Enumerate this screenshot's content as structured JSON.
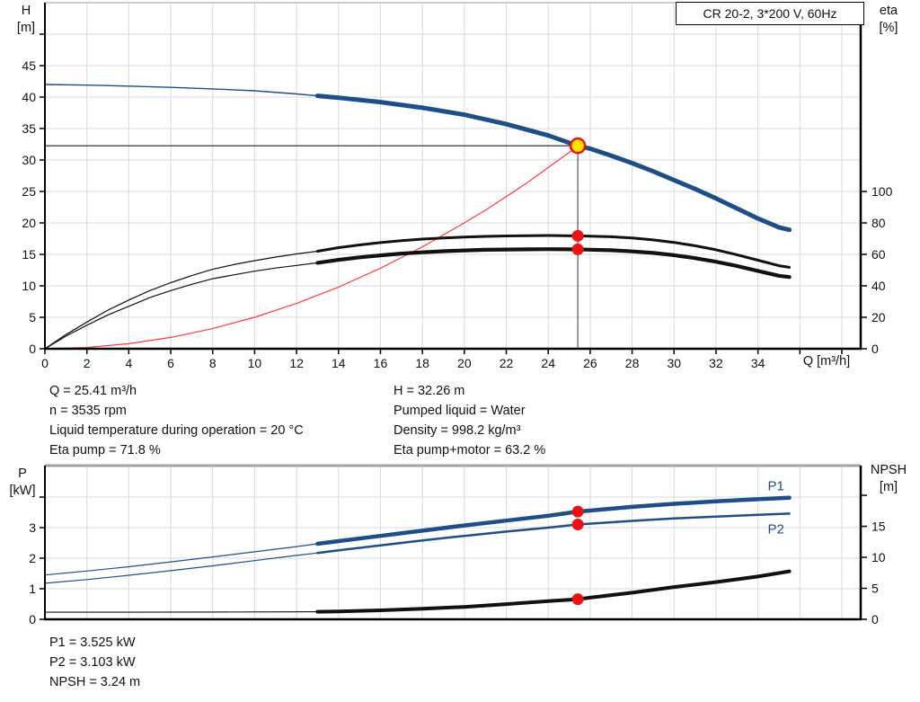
{
  "title_box": "CR 20-2, 3*200 V, 60Hz",
  "colors": {
    "blue": "#1e4e87",
    "red_line": "#ff3b3b",
    "red_dot": "#ee1111",
    "yellow": "#ffe400",
    "black": "#111111",
    "grid": "#d8dbdd",
    "frame_top1": "#c8cccd",
    "frame_top2": "#a2a2a2",
    "axis": "#000000"
  },
  "annotations": {
    "top_left": [
      "Q = 25.41 m³/h",
      "n = 3535 rpm",
      "Liquid temperature during operation = 20 °C",
      "Eta pump = 71.8 %"
    ],
    "top_right": [
      "H = 32.26 m",
      "Pumped liquid = Water",
      "Density = 998.2 kg/m³",
      "Eta pump+motor = 63.2 %"
    ],
    "bottom": [
      "P1 = 3.525 kW",
      "P2 = 3.103 kW",
      "NPSH = 3.24 m"
    ]
  },
  "chart_data": [
    {
      "type": "line",
      "name": "qh-eta-chart",
      "x": {
        "title": "Q [m³/h]",
        "max": 38.9,
        "ticks": [
          0,
          2,
          4,
          6,
          8,
          10,
          12,
          14,
          16,
          18,
          20,
          22,
          24,
          26,
          28,
          30,
          32,
          34,
          36,
          38
        ],
        "tick_labels": [
          "0",
          "2",
          "4",
          "6",
          "8",
          "10",
          "12",
          "14",
          "16",
          "18",
          "20",
          "22",
          "24",
          "26",
          "28",
          "30",
          "32",
          "34",
          "",
          ""
        ],
        "tick_marks": true
      },
      "y_left": {
        "name": "H",
        "unit": "[m]",
        "max": 55,
        "ticks": [
          0,
          5,
          10,
          15,
          20,
          25,
          30,
          35,
          40,
          45,
          50
        ],
        "tick_labels": [
          "0",
          "5",
          "10",
          "15",
          "20",
          "25",
          "30",
          "35",
          "40",
          "45",
          ""
        ]
      },
      "y_right": {
        "name": "eta",
        "unit": "[%]",
        "max": 220,
        "ticks": [
          0,
          20,
          40,
          60,
          80,
          100
        ],
        "tick_labels": [
          "0",
          "20",
          "40",
          "60",
          "80",
          "100"
        ]
      },
      "duty_point": {
        "q": 25.41,
        "h": 32.26
      },
      "series": [
        {
          "id": "pump-curve",
          "axis": "left",
          "color": "blue",
          "thin": 1.4,
          "thick": 5,
          "split_q": 13,
          "points": [
            [
              0,
              42
            ],
            [
              2,
              41.9
            ],
            [
              4,
              41.75
            ],
            [
              6,
              41.55
            ],
            [
              8,
              41.3
            ],
            [
              10,
              41.0
            ],
            [
              12,
              40.5
            ],
            [
              13,
              40.2
            ],
            [
              14,
              39.9
            ],
            [
              16,
              39.2
            ],
            [
              18,
              38.3
            ],
            [
              20,
              37.2
            ],
            [
              22,
              35.7
            ],
            [
              24,
              33.9
            ],
            [
              25.41,
              32.26
            ],
            [
              26,
              31.8
            ],
            [
              27,
              30.7
            ],
            [
              28,
              29.5
            ],
            [
              29,
              28.2
            ],
            [
              30,
              26.8
            ],
            [
              31,
              25.4
            ],
            [
              32,
              23.9
            ],
            [
              33,
              22.3
            ],
            [
              34,
              20.7
            ],
            [
              35,
              19.3
            ],
            [
              35.5,
              18.9
            ]
          ]
        },
        {
          "id": "system-curve",
          "axis": "left",
          "color": "red_line",
          "thin": 1.2,
          "thick": 1.2,
          "split_q": null,
          "points": [
            [
              0,
              0
            ],
            [
              2,
              0.2
            ],
            [
              4,
              0.8
            ],
            [
              6,
              1.8
            ],
            [
              8,
              3.2
            ],
            [
              10,
              5.0
            ],
            [
              12,
              7.2
            ],
            [
              14,
              9.8
            ],
            [
              16,
              12.8
            ],
            [
              18,
              16.2
            ],
            [
              20,
              20.0
            ],
            [
              21,
              22.0
            ],
            [
              22,
              24.2
            ],
            [
              23,
              26.4
            ],
            [
              24,
              28.8
            ],
            [
              25,
              31.2
            ],
            [
              25.41,
              32.26
            ]
          ]
        },
        {
          "id": "eta-pump-curve",
          "axis": "right",
          "color": "black",
          "thin": 1.2,
          "thick": 3,
          "split_q": 13,
          "points": [
            [
              0,
              0
            ],
            [
              1,
              9
            ],
            [
              2,
              17
            ],
            [
              3,
              24.5
            ],
            [
              4,
              31
            ],
            [
              5,
              37
            ],
            [
              6,
              42
            ],
            [
              7,
              46.5
            ],
            [
              8,
              50.5
            ],
            [
              9,
              53.5
            ],
            [
              10,
              56
            ],
            [
              11,
              58.3
            ],
            [
              12,
              60.3
            ],
            [
              13,
              62
            ],
            [
              14,
              64.3
            ],
            [
              15,
              66
            ],
            [
              16,
              67.5
            ],
            [
              17,
              68.7
            ],
            [
              18,
              69.7
            ],
            [
              19,
              70.4
            ],
            [
              20,
              71.0
            ],
            [
              21,
              71.4
            ],
            [
              22,
              71.7
            ],
            [
              23,
              71.9
            ],
            [
              24,
              72.0
            ],
            [
              25.41,
              71.8
            ],
            [
              26,
              71.6
            ],
            [
              27,
              71.2
            ],
            [
              28,
              70.4
            ],
            [
              29,
              69.2
            ],
            [
              30,
              67.6
            ],
            [
              31,
              65.5
            ],
            [
              32,
              62.9
            ],
            [
              33,
              59.8
            ],
            [
              34,
              56.3
            ],
            [
              35,
              52.8
            ],
            [
              35.5,
              51.8
            ]
          ]
        },
        {
          "id": "eta-pump-motor-curve",
          "axis": "right",
          "color": "black",
          "thin": 1.2,
          "thick": 4.2,
          "split_q": 13,
          "points": [
            [
              0,
              0
            ],
            [
              1,
              8
            ],
            [
              2,
              15
            ],
            [
              3,
              21.5
            ],
            [
              4,
              27
            ],
            [
              5,
              32.5
            ],
            [
              6,
              37
            ],
            [
              7,
              41
            ],
            [
              8,
              44.5
            ],
            [
              9,
              47
            ],
            [
              10,
              49.3
            ],
            [
              11,
              51.3
            ],
            [
              12,
              53
            ],
            [
              13,
              54.6
            ],
            [
              14,
              56.5
            ],
            [
              15,
              58.1
            ],
            [
              16,
              59.4
            ],
            [
              17,
              60.5
            ],
            [
              18,
              61.3
            ],
            [
              19,
              62.0
            ],
            [
              20,
              62.5
            ],
            [
              21,
              62.9
            ],
            [
              22,
              63.1
            ],
            [
              23,
              63.2
            ],
            [
              24,
              63.3
            ],
            [
              25.41,
              63.2
            ],
            [
              26,
              63.0
            ],
            [
              27,
              62.6
            ],
            [
              28,
              61.9
            ],
            [
              29,
              60.9
            ],
            [
              30,
              59.5
            ],
            [
              31,
              57.6
            ],
            [
              32,
              55.3
            ],
            [
              33,
              52.6
            ],
            [
              34,
              49.5
            ],
            [
              35,
              46.4
            ],
            [
              35.5,
              45.6
            ]
          ]
        }
      ],
      "markers": [
        {
          "q": 25.41,
          "v": 32.26,
          "axis": "left",
          "style": "duty"
        },
        {
          "q": 25.41,
          "v": 71.8,
          "axis": "right",
          "style": "dot"
        },
        {
          "q": 25.41,
          "v": 63.2,
          "axis": "right",
          "style": "dot"
        }
      ]
    },
    {
      "type": "line",
      "name": "power-npsh-chart",
      "x": {
        "title": "",
        "max": 38.9,
        "ticks": [
          0,
          2,
          4,
          6,
          8,
          10,
          12,
          14,
          16,
          18,
          20,
          22,
          24,
          26,
          28,
          30,
          32,
          34,
          36,
          38
        ],
        "tick_labels": [
          "",
          "",
          "",
          "",
          "",
          "",
          "",
          "",
          "",
          "",
          "",
          "",
          "",
          "",
          "",
          "",
          "",
          "",
          "",
          ""
        ],
        "tick_marks": false
      },
      "y_left": {
        "name": "P",
        "unit": "[kW]",
        "max": 5.03,
        "ticks": [
          0,
          1,
          2,
          3,
          4
        ],
        "tick_labels": [
          "0",
          "1",
          "2",
          "3",
          ""
        ]
      },
      "y_right": {
        "name": "NPSH",
        "unit": "[m]",
        "max": 24.8,
        "ticks": [
          0,
          5,
          10,
          15,
          20
        ],
        "tick_labels": [
          "0",
          "5",
          "10",
          "15",
          ""
        ]
      },
      "duty_point": null,
      "series": [
        {
          "id": "p1-curve",
          "axis": "left",
          "color": "blue",
          "thin": 1.2,
          "thick": 4.5,
          "split_q": 13,
          "label": "P1",
          "label_offset": [
            -15,
            -8
          ],
          "points": [
            [
              0,
              1.45
            ],
            [
              2,
              1.58
            ],
            [
              4,
              1.72
            ],
            [
              6,
              1.88
            ],
            [
              8,
              2.04
            ],
            [
              10,
              2.21
            ],
            [
              12,
              2.38
            ],
            [
              13,
              2.47
            ],
            [
              14,
              2.56
            ],
            [
              16,
              2.73
            ],
            [
              18,
              2.9
            ],
            [
              20,
              3.07
            ],
            [
              22,
              3.23
            ],
            [
              24,
              3.39
            ],
            [
              25.41,
              3.525
            ],
            [
              26,
              3.56
            ],
            [
              28,
              3.68
            ],
            [
              30,
              3.78
            ],
            [
              32,
              3.86
            ],
            [
              34,
              3.93
            ],
            [
              35.5,
              3.98
            ]
          ]
        },
        {
          "id": "p2-curve",
          "axis": "left",
          "color": "blue",
          "thin": 1.2,
          "thick": 2.5,
          "split_q": 13,
          "label": "P2",
          "label_offset": [
            -15,
            22
          ],
          "points": [
            [
              0,
              1.18
            ],
            [
              2,
              1.3
            ],
            [
              4,
              1.44
            ],
            [
              6,
              1.59
            ],
            [
              8,
              1.75
            ],
            [
              10,
              1.92
            ],
            [
              12,
              2.09
            ],
            [
              13,
              2.17
            ],
            [
              14,
              2.26
            ],
            [
              16,
              2.42
            ],
            [
              18,
              2.58
            ],
            [
              20,
              2.73
            ],
            [
              22,
              2.87
            ],
            [
              24,
              3.0
            ],
            [
              25.41,
              3.103
            ],
            [
              26,
              3.13
            ],
            [
              28,
              3.22
            ],
            [
              30,
              3.3
            ],
            [
              32,
              3.36
            ],
            [
              34,
              3.42
            ],
            [
              35.5,
              3.46
            ]
          ]
        },
        {
          "id": "npsh-curve",
          "axis": "right",
          "color": "black",
          "thin": 1.1,
          "thick": 4,
          "split_q": 13,
          "points": [
            [
              0,
              1.15
            ],
            [
              4,
              1.15
            ],
            [
              8,
              1.17
            ],
            [
              12,
              1.2
            ],
            [
              13,
              1.22
            ],
            [
              14,
              1.28
            ],
            [
              16,
              1.45
            ],
            [
              18,
              1.7
            ],
            [
              20,
              2.0
            ],
            [
              22,
              2.45
            ],
            [
              24,
              2.95
            ],
            [
              25.41,
              3.24
            ],
            [
              26,
              3.5
            ],
            [
              28,
              4.3
            ],
            [
              30,
              5.2
            ],
            [
              32,
              6.0
            ],
            [
              34,
              6.9
            ],
            [
              35.5,
              7.75
            ]
          ]
        }
      ],
      "markers": [
        {
          "q": 25.41,
          "v": 3.525,
          "axis": "left",
          "style": "dot"
        },
        {
          "q": 25.41,
          "v": 3.103,
          "axis": "left",
          "style": "dot"
        },
        {
          "q": 25.41,
          "v": 3.24,
          "axis": "right",
          "style": "dot"
        }
      ]
    }
  ]
}
